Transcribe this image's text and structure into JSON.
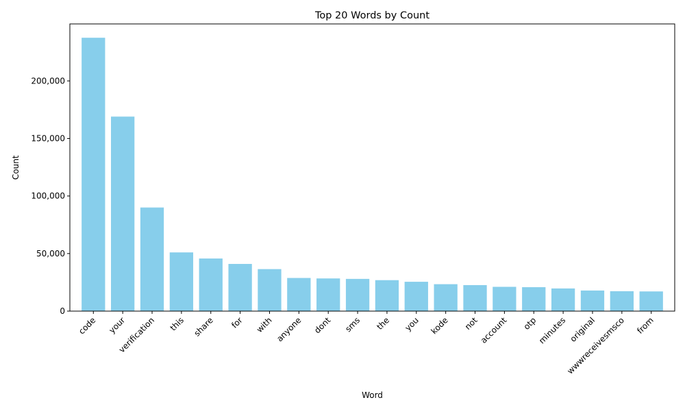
{
  "chart_data": {
    "type": "bar",
    "title": "Top 20 Words by Count",
    "xlabel": "Word",
    "ylabel": "Count",
    "ylim": [
      0,
      249500
    ],
    "yticks": [
      0,
      50000,
      100000,
      150000,
      200000
    ],
    "ytick_labels": [
      "0",
      "50,000",
      "100,000",
      "150,000",
      "200,000"
    ],
    "grid": false,
    "bar_color": "#87CEEB",
    "categories": [
      "code",
      "your",
      "verification",
      "this",
      "share",
      "for",
      "with",
      "anyone",
      "dont",
      "sms",
      "the",
      "you",
      "kode",
      "not",
      "account",
      "otp",
      "minutes",
      "original",
      "wwwreceivesmsco",
      "from"
    ],
    "values": [
      237500,
      169000,
      90000,
      51000,
      45700,
      41000,
      36500,
      28800,
      28400,
      28000,
      26900,
      25500,
      23400,
      22600,
      21100,
      20800,
      19700,
      17900,
      17300,
      17100
    ]
  }
}
